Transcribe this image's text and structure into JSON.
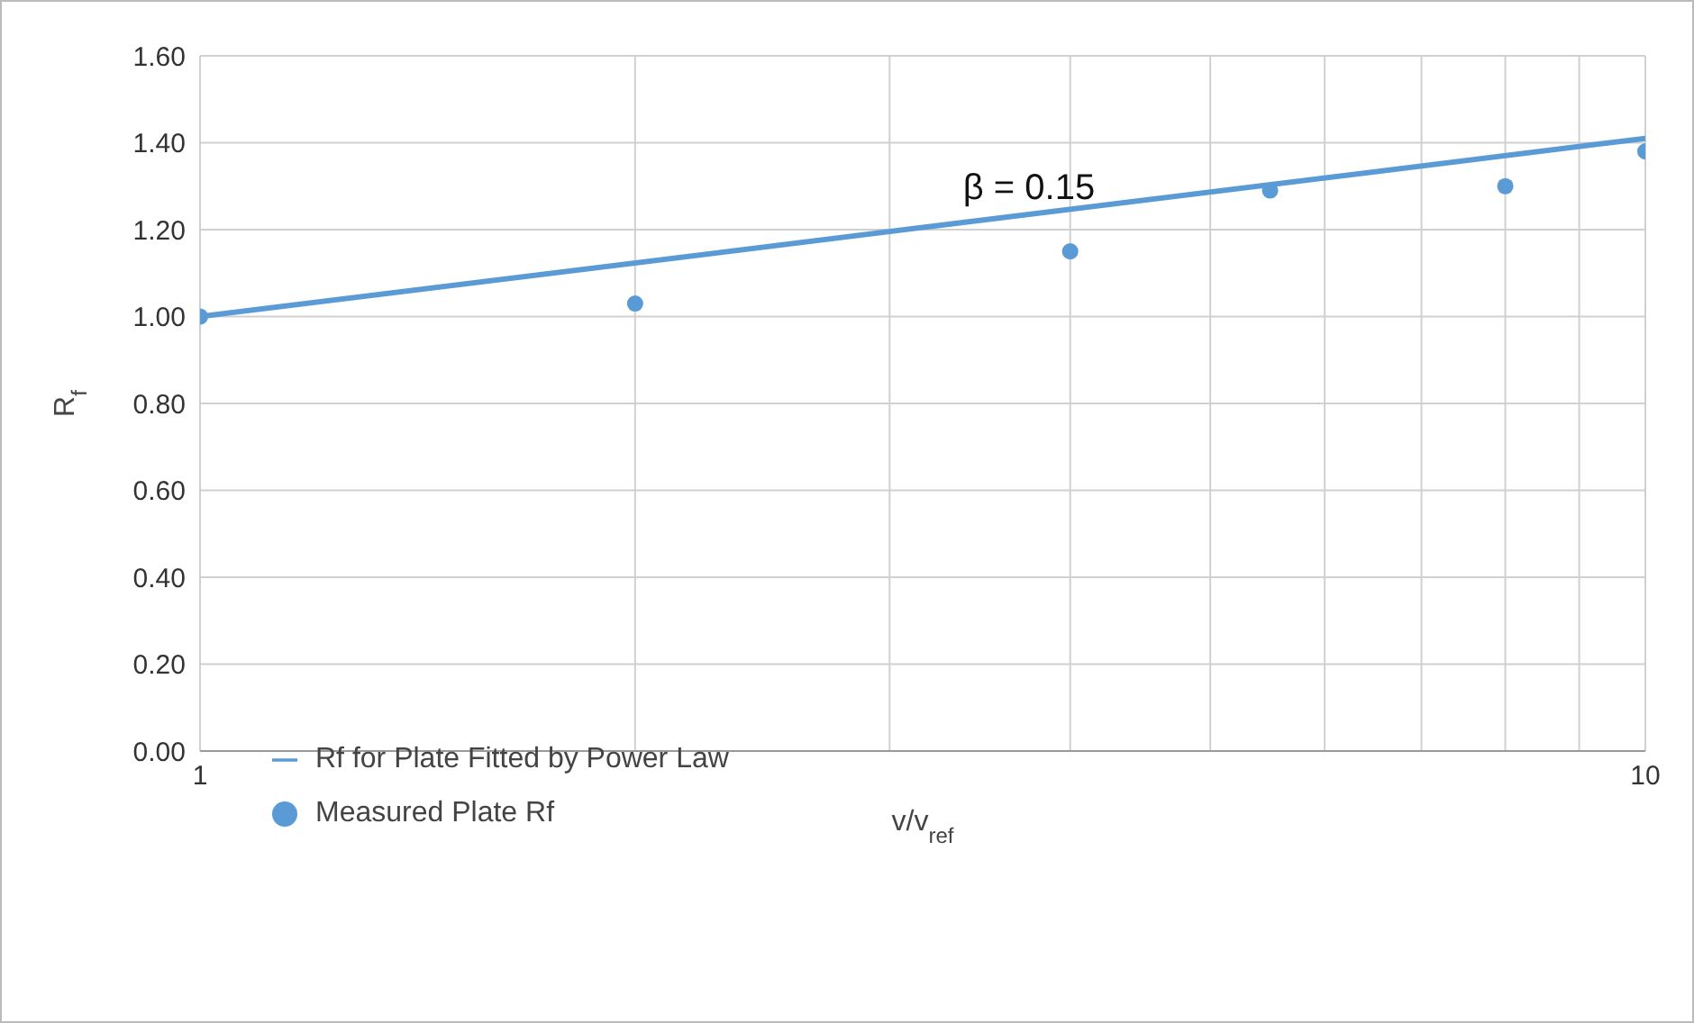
{
  "chart_data": {
    "type": "scatter",
    "xlabel": "v/v$_{ref}$",
    "ylabel": "R$_{f}$",
    "log": "x",
    "xlim": [
      1,
      10
    ],
    "xticks": [
      1,
      {
        "value": 2,
        "label": null
      },
      {
        "value": 3,
        "label": null
      },
      {
        "value": 4,
        "label": null
      },
      {
        "value": 5,
        "label": null
      },
      {
        "value": 6,
        "label": null
      },
      {
        "value": 7,
        "label": null
      },
      {
        "value": 8,
        "label": null
      },
      {
        "value": 9,
        "label": null
      },
      10
    ],
    "ylim": [
      0,
      1.6
    ],
    "yticks": [
      {
        "value": 0,
        "label": "0.00"
      },
      {
        "value": 0.2,
        "label": "0.20"
      },
      {
        "value": 0.4,
        "label": "0.40"
      },
      {
        "value": 0.6,
        "label": "0.60"
      },
      {
        "value": 0.8,
        "label": "0.80"
      },
      {
        "value": 1,
        "label": "1.00"
      },
      {
        "value": 1.2,
        "label": "1.20"
      },
      {
        "value": 1.4,
        "label": "1.40"
      },
      {
        "value": 1.6,
        "label": "1.60"
      }
    ],
    "grid": true,
    "legend": "bottom left",
    "annotations": [
      "β = 0.15"
    ],
    "series": [
      {
        "name": "Rf for Plate Fitted by Power Law",
        "type": "line",
        "marker": "none",
        "color": "#5b9bd5",
        "x": [
          1,
          10
        ],
        "values": [
          1.0,
          1.41
        ]
      },
      {
        "name": "Measured Plate Rf",
        "marker": "circle",
        "color": "#5b9bd5",
        "x": [
          1,
          2,
          4,
          5.5,
          8,
          10
        ],
        "values": [
          1.0,
          1.03,
          1.15,
          1.29,
          1.3,
          1.38
        ]
      }
    ]
  }
}
